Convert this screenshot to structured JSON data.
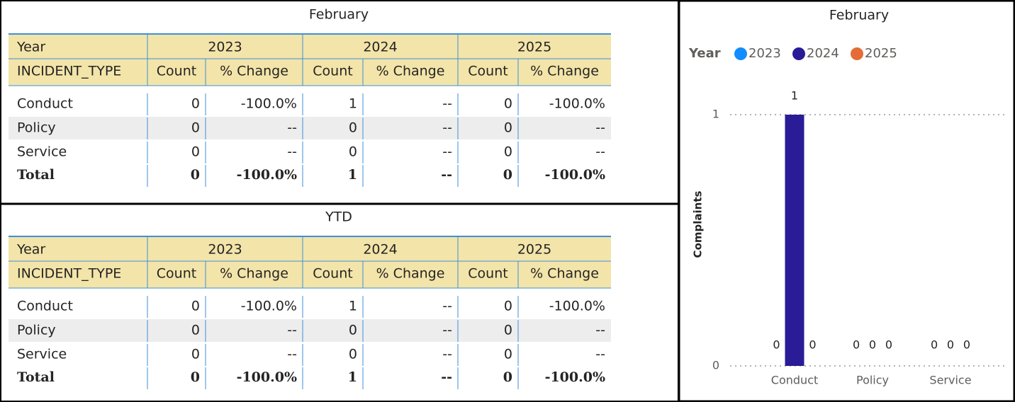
{
  "tables": [
    {
      "title": "February",
      "year_label": "Year",
      "years": [
        "2023",
        "2024",
        "2025"
      ],
      "columns": [
        "INCIDENT_TYPE",
        "Count",
        "% Change",
        "Count",
        "% Change",
        "Count",
        "% Change"
      ],
      "rows": [
        [
          "Conduct",
          0,
          "-100.0%",
          1,
          "--",
          0,
          "-100.0%"
        ],
        [
          "Policy",
          0,
          "--",
          0,
          "--",
          0,
          "--"
        ],
        [
          "Service",
          0,
          "--",
          0,
          "--",
          0,
          "--"
        ]
      ],
      "total": [
        "Total",
        0,
        "-100.0%",
        1,
        "--",
        0,
        "-100.0%"
      ]
    },
    {
      "title": "YTD",
      "year_label": "Year",
      "years": [
        "2023",
        "2024",
        "2025"
      ],
      "columns": [
        "INCIDENT_TYPE",
        "Count",
        "% Change",
        "Count",
        "% Change",
        "Count",
        "% Change"
      ],
      "rows": [
        [
          "Conduct",
          0,
          "-100.0%",
          1,
          "--",
          0,
          "-100.0%"
        ],
        [
          "Policy",
          0,
          "--",
          0,
          "--",
          0,
          "--"
        ],
        [
          "Service",
          0,
          "--",
          0,
          "--",
          0,
          "--"
        ]
      ],
      "total": [
        "Total",
        0,
        "-100.0%",
        1,
        "--",
        0,
        "-100.0%"
      ]
    }
  ],
  "chart_data": {
    "type": "bar",
    "title": "February",
    "legend_title": "Year",
    "ylabel": "Complaints",
    "categories": [
      "Conduct",
      "Policy",
      "Service"
    ],
    "series": [
      {
        "name": "2023",
        "color": "#118DFF",
        "values": [
          0,
          0,
          0
        ]
      },
      {
        "name": "2024",
        "color": "#2A1B96",
        "values": [
          1,
          0,
          0
        ]
      },
      {
        "name": "2025",
        "color": "#E66C37",
        "values": [
          0,
          0,
          0
        ]
      }
    ],
    "ylim": [
      0,
      1
    ],
    "yticks": [
      0,
      1
    ],
    "grid": true,
    "data_labels": true,
    "legend": "top-left"
  }
}
